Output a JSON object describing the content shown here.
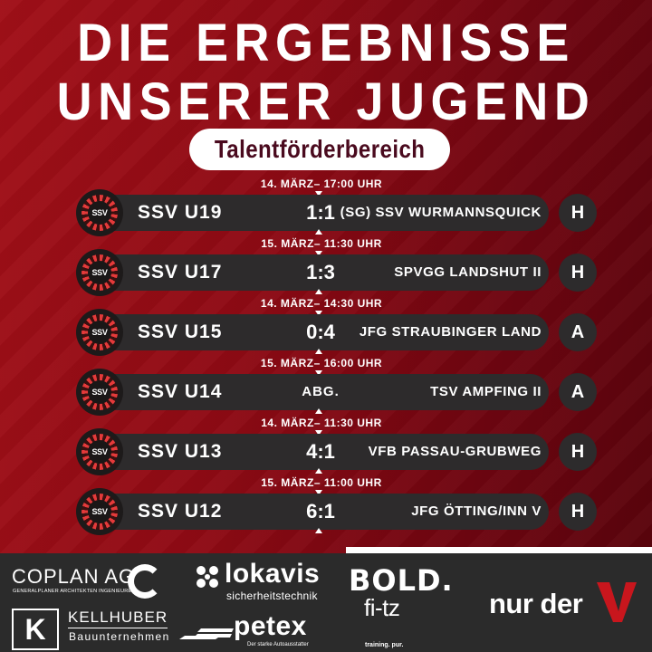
{
  "header": {
    "title_line1": "DIE ERGEBNISSE",
    "title_line2": "UNSERER JUGEND",
    "category_pill": "Talentförderbereich"
  },
  "colors": {
    "background_red": "#8e0a14",
    "bar_dark": "#2d2b2c",
    "pill_text": "#4a0a1e",
    "footer": "#2b2b2b",
    "accent_v": "#c8161d"
  },
  "club_logo": {
    "text": "SSV",
    "icon": "ssv-club-crest-icon"
  },
  "matches": [
    {
      "date": "14. MÄRZ– 17:00 UHR",
      "team": "SSV U19",
      "score": "1:1",
      "opponent": "(SG) SSV WURMANNSQUICK",
      "venue": "H"
    },
    {
      "date": "15. MÄRZ– 11:30 UHR",
      "team": "SSV U17",
      "score": "1:3",
      "opponent": "SPVGG LANDSHUT II",
      "venue": "H"
    },
    {
      "date": "14. MÄRZ– 14:30 UHR",
      "team": "SSV U15",
      "score": "0:4",
      "opponent": "JFG STRAUBINGER LAND",
      "venue": "A"
    },
    {
      "date": "15. MÄRZ– 16:00 UHR",
      "team": "SSV U14",
      "score": "ABG.",
      "opponent": "TSV AMPFING II",
      "venue": "A"
    },
    {
      "date": "14. MÄRZ– 11:30 UHR",
      "team": "SSV U13",
      "score": "4:1",
      "opponent": "VFB PASSAU-GRUBWEG",
      "venue": "H"
    },
    {
      "date": "15. MÄRZ– 11:00 UHR",
      "team": "SSV U12",
      "score": "6:1",
      "opponent": "JFG ÖTTING/INN V",
      "venue": "H"
    }
  ],
  "sponsors": {
    "coplan": {
      "name": "COPLAN AG",
      "subtitle": "GENERALPLANER ARCHITEKTEN INGENIEURE"
    },
    "kellhuber": {
      "logo_letter": "K",
      "name": "KELLHUBER",
      "subtitle": "Bauunternehmen"
    },
    "lokavis": {
      "icon_glyph": "⁘",
      "name": "lokavis",
      "subtitle": "sicherheitstechnik"
    },
    "petex": {
      "name": "petex",
      "subtitle": "Der starke Autoausstatter"
    },
    "bold": {
      "name": "BOLD."
    },
    "fitz": {
      "name": "fi-tz",
      "subtitle": "training. pur."
    },
    "nurder": {
      "name": "nur der"
    }
  }
}
